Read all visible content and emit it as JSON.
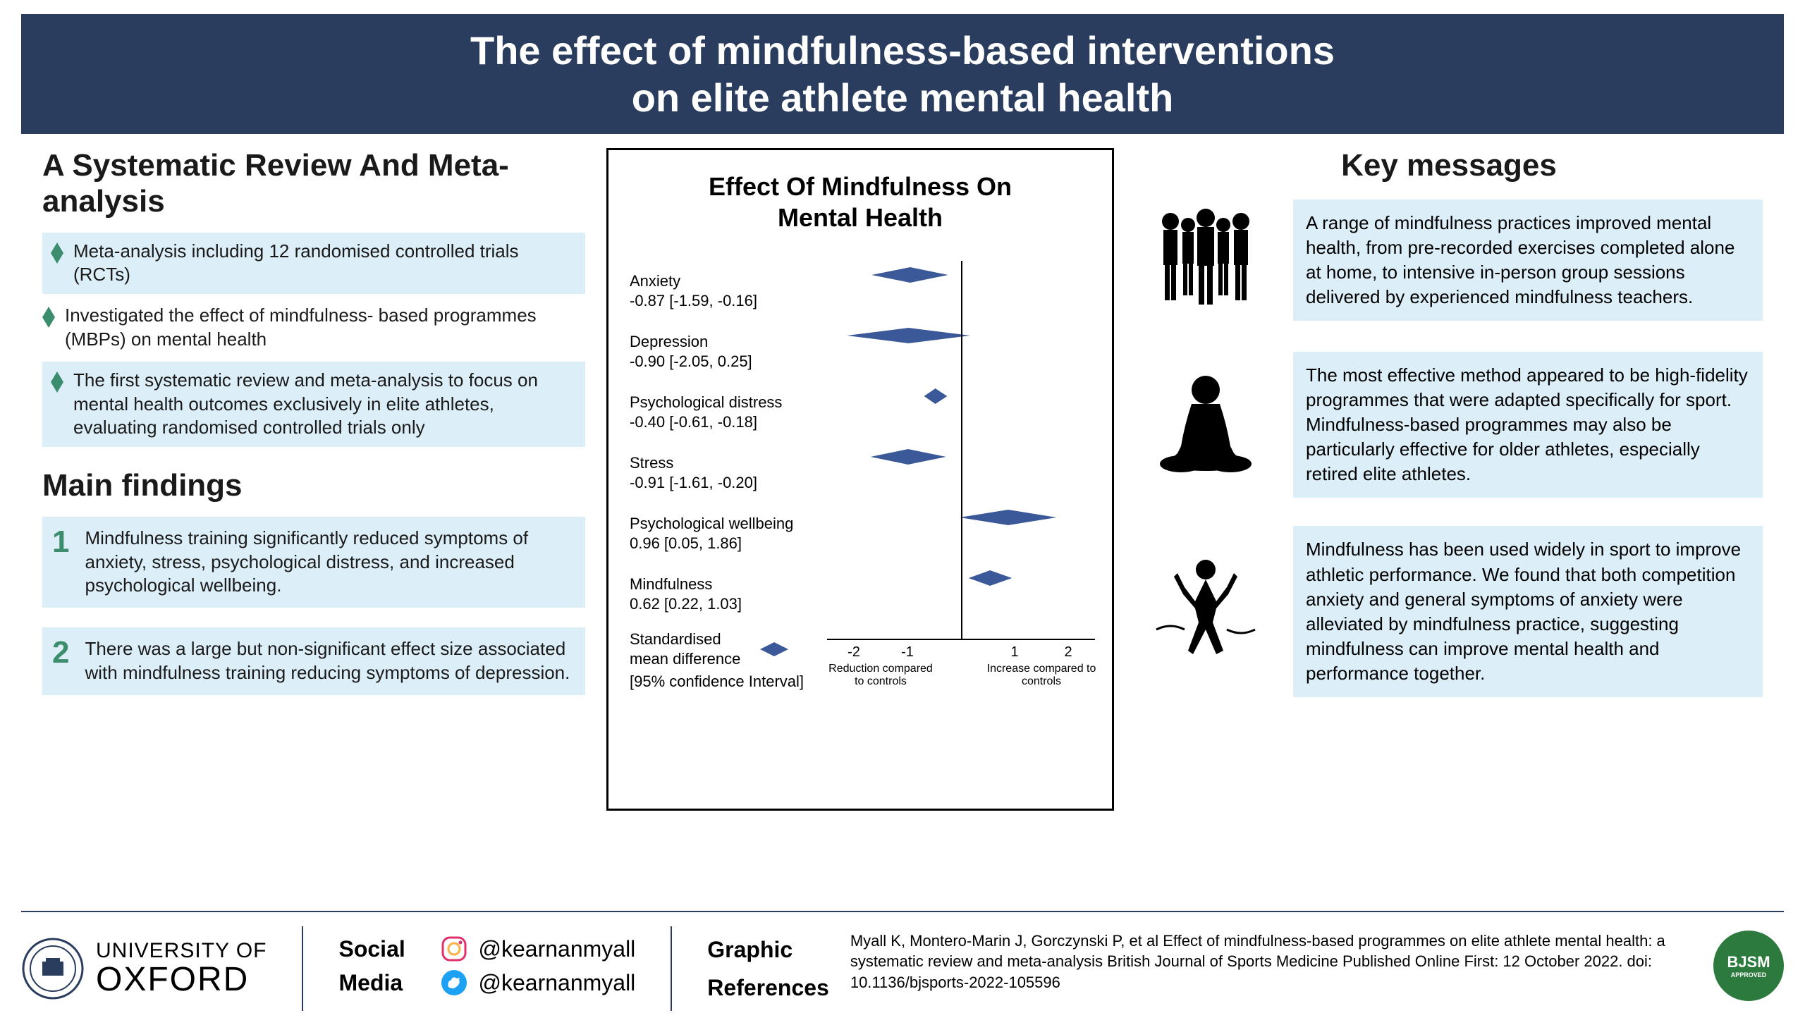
{
  "title_line1": "The effect of mindfulness-based interventions",
  "title_line2": "on elite athlete mental health",
  "left": {
    "review_heading": "A Systematic Review And Meta-analysis",
    "bullets": [
      {
        "text": "Meta-analysis including 12 randomised controlled trials (RCTs)",
        "shaded": true
      },
      {
        "text": "Investigated the effect of mindfulness- based programmes (MBPs) on mental health",
        "shaded": false
      },
      {
        "text": "The first systematic review and meta-analysis to focus on mental health outcomes exclusively in elite athletes, evaluating randomised controlled trials only",
        "shaded": true
      }
    ],
    "findings_heading": "Main findings",
    "findings": [
      {
        "num": "1",
        "text": "Mindfulness training significantly reduced symptoms of anxiety, stress, psychological distress, and increased psychological wellbeing."
      },
      {
        "num": "2",
        "text": "There was a large but non-significant effect size associated with mindfulness training reducing symptoms of depression."
      }
    ]
  },
  "forest": {
    "title_line1": "Effect Of Mindfulness On",
    "title_line2": "Mental Health",
    "xmin": -2.5,
    "xmax": 2.5,
    "ticks": [
      -2,
      -1,
      1,
      2
    ],
    "axis_left": "Reduction compared to controls",
    "axis_right": "Increase compared to controls",
    "outcomes": [
      {
        "name": "Anxiety",
        "est": -0.87,
        "lo": -1.59,
        "hi": -0.16,
        "display": "-0.87 [-1.59, -0.16]"
      },
      {
        "name": "Depression",
        "est": -0.9,
        "lo": -2.05,
        "hi": 0.25,
        "display": "-0.90 [-2.05, 0.25]"
      },
      {
        "name": "Psychological distress",
        "est": -0.4,
        "lo": -0.61,
        "hi": -0.18,
        "display": "-0.40 [-0.61, -0.18]"
      },
      {
        "name": "Stress",
        "est": -0.91,
        "lo": -1.61,
        "hi": -0.2,
        "display": "-0.91 [-1.61, -0.20]"
      },
      {
        "name": "Psychological wellbeing",
        "est": 0.96,
        "lo": 0.05,
        "hi": 1.86,
        "display": "0.96 [0.05, 1.86]"
      },
      {
        "name": "Mindfulness",
        "est": 0.62,
        "lo": 0.22,
        "hi": 1.03,
        "display": "0.62 [0.22, 1.03]"
      }
    ],
    "smd_label": "Standardised mean difference",
    "ci_label": "[95% confidence Interval]",
    "diamond_color": "#3b5998",
    "diamond_height": 22
  },
  "right": {
    "heading": "Key messages",
    "messages": [
      {
        "icon": "athletes",
        "text": "A range of mindfulness practices improved mental health, from pre-recorded exercises completed alone at home, to intensive in-person group sessions delivered by experienced mindfulness teachers."
      },
      {
        "icon": "meditation",
        "text": "The most effective method appeared to be high-fidelity programmes that were adapted specifically for sport. Mindfulness-based programmes may also be particularly effective for older athletes, especially retired elite athletes."
      },
      {
        "icon": "finish",
        "text": "Mindfulness has been used widely in sport to improve athletic performance. We found that both competition anxiety and general symptoms of anxiety were alleviated by mindfulness practice, suggesting mindfulness can improve mental health and performance together."
      }
    ]
  },
  "footer": {
    "oxford_top": "UNIVERSITY OF",
    "oxford_bottom": "OXFORD",
    "social_label1": "Social",
    "social_label2": "Media",
    "instagram": "@kearnanmyall",
    "twitter": "@kearnanmyall",
    "refs_label1": "Graphic",
    "refs_label2": "References",
    "refs_text": "Myall K, Montero-Marin J, Gorczynski P, et al Effect of mindfulness-based programmes on elite athlete mental health: a systematic review and meta-analysis British Journal of Sports Medicine Published Online First: 12 October 2022. doi: 10.1136/bjsports-2022-105596",
    "bjsm": "BJSM",
    "bjsm_sub": "APPROVED"
  },
  "colors": {
    "title_bg": "#2a3d5e",
    "shaded_bg": "#dceef7",
    "bullet_diamond": "#3b8d6e",
    "finding_num": "#3b8d6e"
  }
}
